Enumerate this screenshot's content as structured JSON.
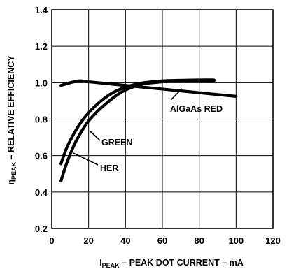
{
  "chart_data": {
    "type": "line",
    "xlabel": {
      "prefix": "I",
      "subscript": "PEAK",
      "rest": " – PEAK DOT CURRENT – mA"
    },
    "ylabel": {
      "prefix": "η",
      "subscript": "PEAK",
      "rest": " – RELATIVE EFFICIENCY"
    },
    "xlim": [
      0,
      120
    ],
    "ylim": [
      0.2,
      1.4
    ],
    "x_ticks": [
      0,
      20,
      40,
      60,
      80,
      100,
      120
    ],
    "y_ticks": [
      0.2,
      0.4,
      0.6,
      0.8,
      1.0,
      1.2,
      1.4
    ],
    "x_tick_labels": [
      "0",
      "20",
      "40",
      "60",
      "80",
      "100",
      "120"
    ],
    "y_tick_labels": [
      "0.2",
      "0.4",
      "0.6",
      "0.8",
      "1.0",
      "1.2",
      "1.4"
    ],
    "grid": true,
    "series": [
      {
        "name": "AlGaAs RED",
        "x": [
          5,
          10,
          15,
          20,
          30,
          40,
          50,
          60,
          70,
          80,
          90,
          100
        ],
        "y": [
          0.985,
          1.0,
          1.01,
          1.005,
          0.995,
          0.985,
          0.975,
          0.965,
          0.955,
          0.945,
          0.935,
          0.925
        ]
      },
      {
        "name": "GREEN",
        "x": [
          5,
          8,
          12,
          16,
          20,
          25,
          30,
          35,
          40,
          45,
          50,
          60,
          70,
          80,
          88
        ],
        "y": [
          0.555,
          0.64,
          0.72,
          0.785,
          0.835,
          0.885,
          0.925,
          0.955,
          0.975,
          0.99,
          1.0,
          1.01,
          1.013,
          1.015,
          1.015
        ]
      },
      {
        "name": "HER",
        "x": [
          5,
          8,
          12,
          16,
          20,
          25,
          30,
          35,
          40,
          45,
          50,
          55,
          60,
          70,
          80,
          88
        ],
        "y": [
          0.46,
          0.555,
          0.655,
          0.73,
          0.79,
          0.845,
          0.89,
          0.93,
          0.96,
          0.98,
          0.995,
          1.0,
          1.005,
          1.01,
          1.01,
          1.01
        ]
      }
    ]
  }
}
